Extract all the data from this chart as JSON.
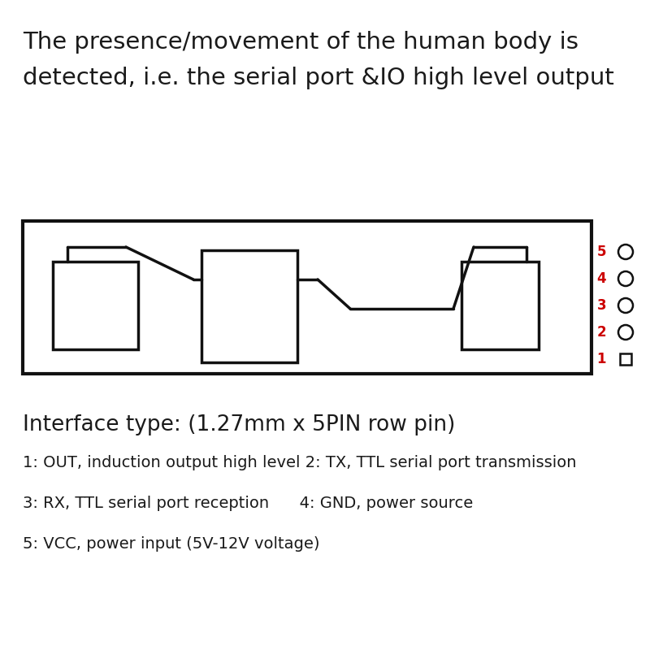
{
  "title_line1": "The presence/movement of the human body is",
  "title_line2": "detected, i.e. the serial port &IO high level output",
  "interface_label": "Interface type: (1.27mm x 5PIN row pin)",
  "pin_label1": "1: OUT, induction output high level 2: TX, TTL serial port transmission",
  "pin_label2": "3: RX, TTL serial port reception      4: GND, power source",
  "pin_label3": "5: VCC, power input (5V-12V voltage)",
  "bg_color": "#ffffff",
  "text_color": "#1a1a1a",
  "pin_number_color": "#cc0000",
  "title_fontsize": 21,
  "interface_fontsize": 19,
  "pin_label_fontsize": 14
}
